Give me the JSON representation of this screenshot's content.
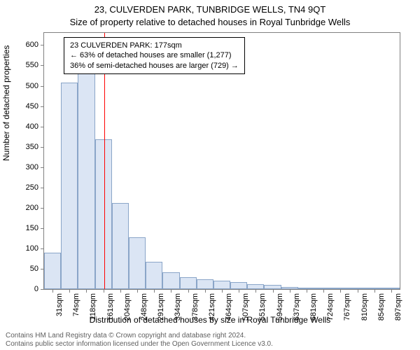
{
  "chart": {
    "type": "histogram",
    "title_main": "23, CULVERDEN PARK, TUNBRIDGE WELLS, TN4 9QT",
    "title_sub": "Size of property relative to detached houses in Royal Tunbridge Wells",
    "y_label": "Number of detached properties",
    "x_label": "Distribution of detached houses by size in Royal Tunbridge Wells",
    "background_color": "#ffffff",
    "bar_fill": "#dbe5f4",
    "bar_border": "#8aa5c8",
    "axis_color": "#808080",
    "marker_line_color": "#ff0000",
    "marker_x_value": 177,
    "y_ticks": [
      0,
      50,
      100,
      150,
      200,
      250,
      300,
      350,
      400,
      450,
      500,
      550,
      600
    ],
    "y_max": 630,
    "x_ticks": [
      "31sqm",
      "74sqm",
      "118sqm",
      "161sqm",
      "204sqm",
      "248sqm",
      "291sqm",
      "334sqm",
      "378sqm",
      "421sqm",
      "464sqm",
      "507sqm",
      "551sqm",
      "594sqm",
      "637sqm",
      "681sqm",
      "724sqm",
      "767sqm",
      "810sqm",
      "854sqm",
      "897sqm"
    ],
    "bar_values": [
      90,
      508,
      550,
      368,
      212,
      128,
      68,
      42,
      30,
      24,
      20,
      18,
      12,
      10,
      6,
      4,
      3,
      3,
      3,
      2,
      2
    ],
    "annotation": {
      "line1": "23 CULVERDEN PARK: 177sqm",
      "line2": "← 63% of detached houses are smaller (1,277)",
      "line3": "36% of semi-detached houses are larger (729) →"
    },
    "footer_line1": "Contains HM Land Registry data © Crown copyright and database right 2024.",
    "footer_line2": "Contains public sector information licensed under the Open Government Licence v3.0."
  }
}
